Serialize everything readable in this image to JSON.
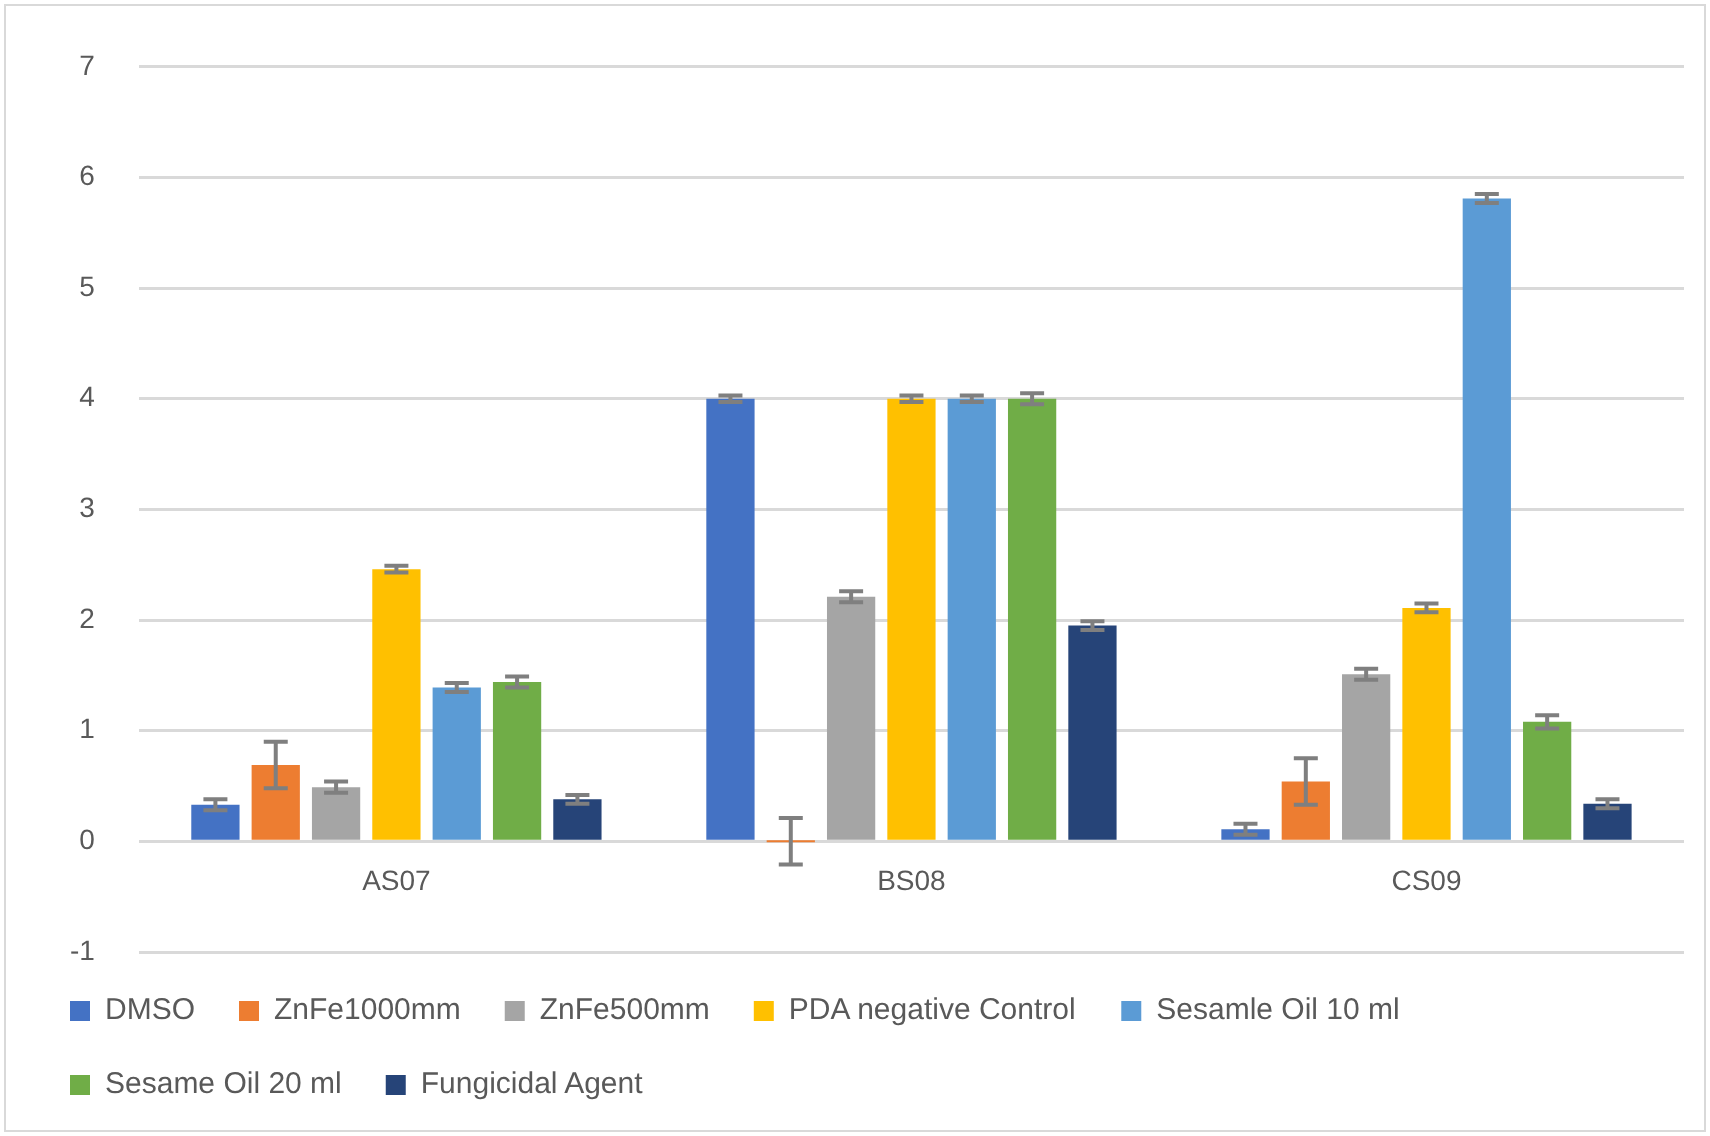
{
  "chart_data": {
    "type": "bar",
    "categories": [
      "AS07",
      "BS08",
      "CS09"
    ],
    "series": [
      {
        "name": "DMSO",
        "color": "#4472c4",
        "values": [
          0.33,
          4.0,
          0.11
        ],
        "errors": [
          0.05,
          0.03,
          0.05
        ]
      },
      {
        "name": "ZnFe1000mm",
        "color": "#ed7d31",
        "values": [
          0.69,
          0,
          0.54
        ],
        "errors": [
          0.21,
          0.21,
          0.21
        ]
      },
      {
        "name": "ZnFe500mm",
        "color": "#a5a5a5",
        "values": [
          0.49,
          2.21,
          1.51
        ],
        "errors": [
          0.05,
          0.05,
          0.05
        ]
      },
      {
        "name": "PDA negative Control",
        "color": "#ffc000",
        "values": [
          2.46,
          4.0,
          2.11
        ],
        "errors": [
          0.03,
          0.03,
          0.04
        ]
      },
      {
        "name": "Sesamle Oil 10 ml",
        "color": "#5b9bd5",
        "values": [
          1.39,
          4.0,
          5.81
        ],
        "errors": [
          0.04,
          0.03,
          0.04
        ]
      },
      {
        "name": "Sesame Oil 20 ml",
        "color": "#70ad47",
        "values": [
          1.44,
          4.0,
          1.08
        ],
        "errors": [
          0.05,
          0.05,
          0.06
        ]
      },
      {
        "name": "Fungicidal Agent",
        "color": "#264478",
        "values": [
          0.38,
          1.95,
          0.34
        ],
        "errors": [
          0.04,
          0.04,
          0.04
        ]
      }
    ],
    "ylim": [
      -1,
      7
    ],
    "yticks": [
      -1,
      0,
      1,
      2,
      3,
      4,
      5,
      6,
      7
    ],
    "grid": "y",
    "legend": "bottom"
  }
}
